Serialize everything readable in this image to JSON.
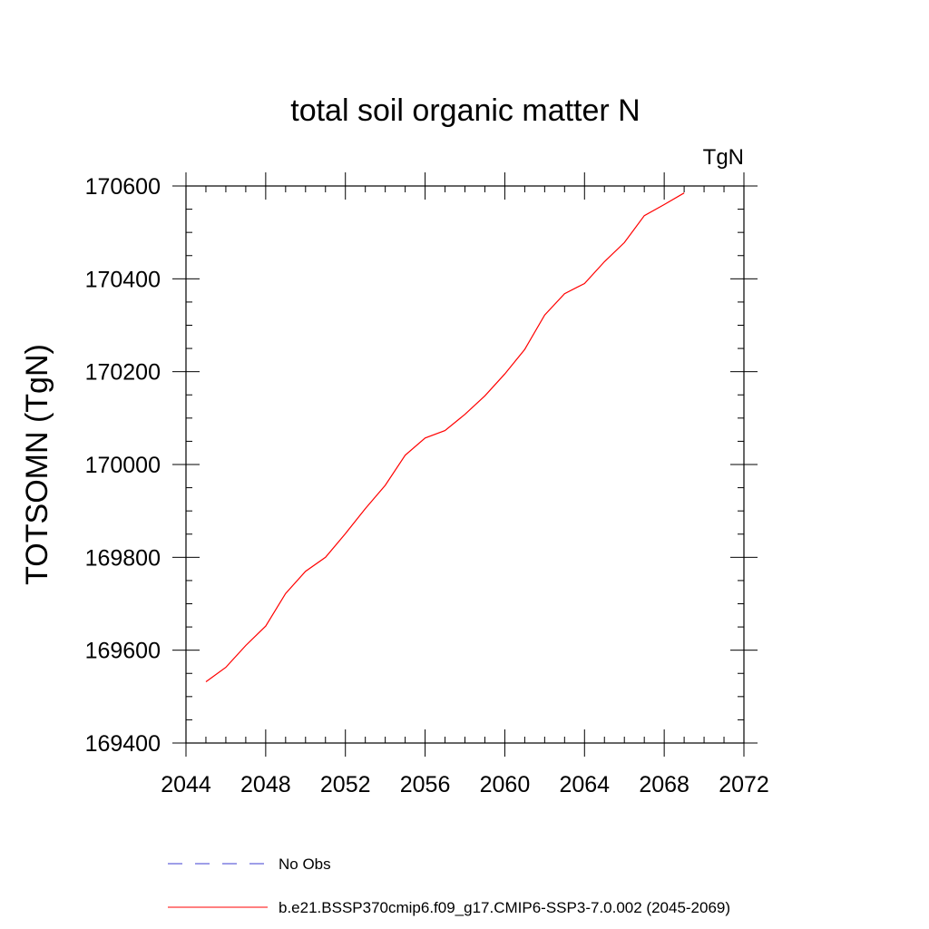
{
  "chart_data": {
    "type": "line",
    "title": "total soil organic matter N",
    "units_label": "TgN",
    "ylabel": "TOTSOMN  (TgN)",
    "xlabel": "",
    "xlim": [
      2044,
      2072
    ],
    "ylim": [
      169400,
      170600
    ],
    "x_ticks": [
      2044,
      2048,
      2052,
      2056,
      2060,
      2064,
      2068,
      2072
    ],
    "y_ticks": [
      169400,
      169600,
      169800,
      170000,
      170200,
      170400,
      170600
    ],
    "grid": false,
    "legend_position": "bottom",
    "series": [
      {
        "name": "b.e21.BSSP370cmip6.f09_g17.CMIP6-SSP3-7.0.002 (2045-2069)",
        "color": "#ff0000",
        "style": "solid",
        "x": [
          2045,
          2046,
          2047,
          2048,
          2049,
          2050,
          2051,
          2052,
          2053,
          2054,
          2055,
          2056,
          2057,
          2058,
          2059,
          2060,
          2061,
          2062,
          2063,
          2064,
          2065,
          2066,
          2067,
          2068,
          2069
        ],
        "y": [
          169532,
          169563,
          169610,
          169652,
          169722,
          169770,
          169800,
          169851,
          169905,
          169955,
          170020,
          170057,
          170073,
          170108,
          170148,
          170195,
          170248,
          170322,
          170368,
          170390,
          170437,
          170478,
          170536,
          170560,
          170585
        ]
      },
      {
        "name": "No Obs",
        "color": "#3c3cd0",
        "style": "dashed",
        "x": [],
        "y": []
      }
    ]
  }
}
